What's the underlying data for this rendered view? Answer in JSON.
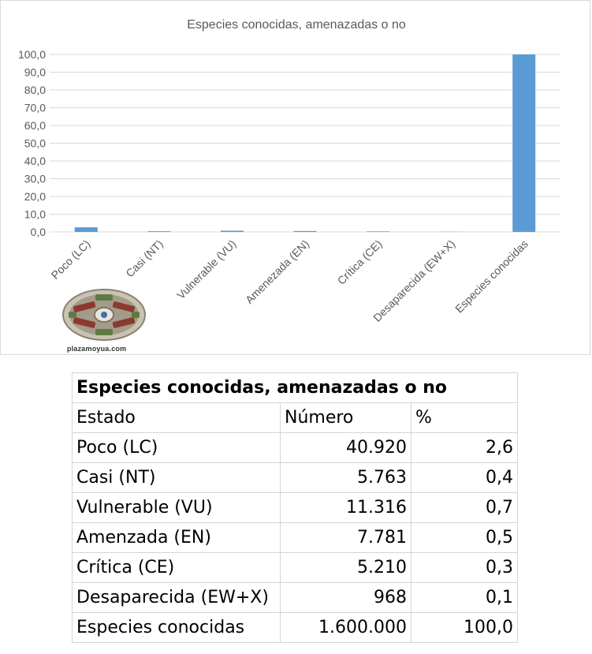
{
  "chart_data": {
    "type": "bar",
    "title": "Especies conocidas, amenazadas o no",
    "categories": [
      "Poco (LC)",
      "Casi (NT)",
      "Vulnerable (VU)",
      "Amenezada (EN)",
      "Crítica (CE)",
      "Desaparecida (EW+X)",
      "Especies conocidas"
    ],
    "values": [
      2.6,
      0.4,
      0.7,
      0.5,
      0.3,
      0.1,
      100.0
    ],
    "ylim": [
      0,
      100
    ],
    "yticks": [
      "0,0",
      "10,0",
      "20,0",
      "30,0",
      "40,0",
      "50,0",
      "60,0",
      "70,0",
      "80,0",
      "90,0",
      "100,0"
    ],
    "grid": true,
    "bar_color": "#5b9bd5",
    "grid_color": "#d9d9d9"
  },
  "logo": {
    "icon": "plaza-moyua-logo",
    "caption": "plazamoyua.com"
  },
  "table": {
    "title": "Especies conocidas, amenazadas o no",
    "headers": [
      "Estado",
      "Número",
      "%"
    ],
    "rows": [
      [
        "Poco (LC)",
        "40.920",
        "2,6"
      ],
      [
        "Casi (NT)",
        "5.763",
        "0,4"
      ],
      [
        "Vulnerable (VU)",
        "11.316",
        "0,7"
      ],
      [
        "Amenzada (EN)",
        "7.781",
        "0,5"
      ],
      [
        "Crítica (CE)",
        "5.210",
        "0,3"
      ],
      [
        "Desaparecida (EW+X)",
        "968",
        "0,1"
      ],
      [
        "Especies conocidas",
        "1.600.000",
        "100,0"
      ]
    ]
  }
}
